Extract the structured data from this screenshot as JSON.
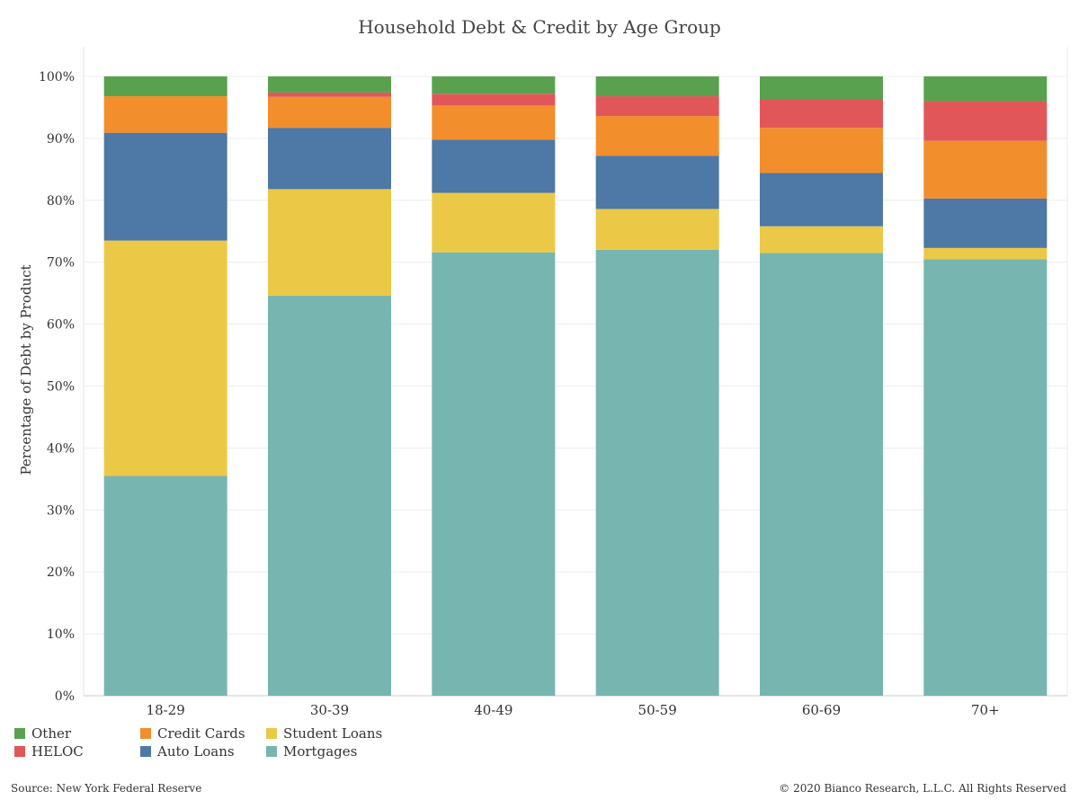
{
  "chart_data": {
    "type": "bar",
    "stacked": true,
    "title": "Household Debt & Credit by Age Group",
    "ylabel": "Percentage of Debt by Product",
    "xlabel": "",
    "ylim": [
      0,
      100
    ],
    "yticks": [
      "0%",
      "10%",
      "20%",
      "30%",
      "40%",
      "50%",
      "60%",
      "70%",
      "80%",
      "90%",
      "100%"
    ],
    "categories": [
      "18-29",
      "30-39",
      "40-49",
      "50-59",
      "60-69",
      "70+"
    ],
    "series": [
      {
        "name": "Mortgages",
        "color": "#77b5b0",
        "values": [
          35.5,
          64.6,
          71.6,
          72.0,
          71.5,
          70.5
        ]
      },
      {
        "name": "Student Loans",
        "color": "#ebc947",
        "values": [
          38.0,
          17.2,
          9.6,
          6.6,
          4.3,
          1.8
        ]
      },
      {
        "name": "Auto Loans",
        "color": "#4e78a5",
        "values": [
          17.4,
          9.9,
          8.6,
          8.6,
          8.6,
          8.0
        ]
      },
      {
        "name": "Credit Cards",
        "color": "#f28e2c",
        "values": [
          5.9,
          5.0,
          5.5,
          6.4,
          7.3,
          9.3
        ]
      },
      {
        "name": "HELOC",
        "color": "#e15759",
        "values": [
          0.0,
          0.7,
          1.9,
          3.2,
          4.6,
          6.4
        ]
      },
      {
        "name": "Other",
        "color": "#59a14f",
        "values": [
          3.2,
          2.6,
          2.8,
          3.2,
          3.7,
          4.0
        ]
      }
    ],
    "legend_position": "bottom-left",
    "grid": true
  },
  "legend": [
    {
      "name": "Other",
      "color": "#59a14f"
    },
    {
      "name": "Credit Cards",
      "color": "#f28e2c"
    },
    {
      "name": "Student Loans",
      "color": "#ebc947"
    },
    {
      "name": "HELOC",
      "color": "#e15759"
    },
    {
      "name": "Auto Loans",
      "color": "#4e78a5"
    },
    {
      "name": "Mortgages",
      "color": "#77b5b0"
    }
  ],
  "footer": {
    "source": "Source: New York Federal Reserve",
    "copyright": "© 2020 Bianco Research, L.L.C. All Rights Reserved"
  }
}
